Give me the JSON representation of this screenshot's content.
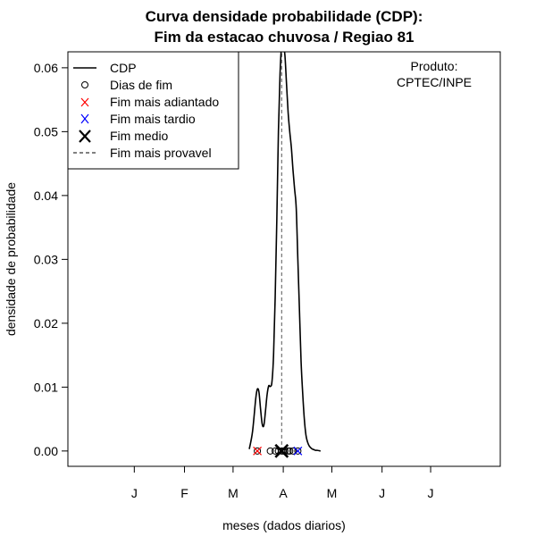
{
  "chart_data": {
    "type": "line",
    "title_line1": "Curva densidade probabilidade (CDP):",
    "title_line2": "Fim da estacao chuvosa / Regiao 81",
    "xlabel": "meses (dados diarios)",
    "ylabel": "densidade de probabilidade",
    "x_month_ticks": [
      {
        "label": "J",
        "day": 15
      },
      {
        "label": "F",
        "day": 46
      },
      {
        "label": "M",
        "day": 76
      },
      {
        "label": "A",
        "day": 107
      },
      {
        "label": "M",
        "day": 137
      },
      {
        "label": "J",
        "day": 168
      },
      {
        "label": "J",
        "day": 198
      }
    ],
    "xlim": [
      -26,
      241
    ],
    "ylim": [
      -0.0024,
      0.0625
    ],
    "y_ticks": [
      0.0,
      0.01,
      0.02,
      0.03,
      0.04,
      0.05,
      0.06
    ],
    "y_tick_labels": [
      "0.00",
      "0.01",
      "0.02",
      "0.03",
      "0.04",
      "0.05",
      "0.06"
    ],
    "density_curve": {
      "x": [
        86,
        88,
        90,
        91,
        92,
        93,
        94,
        95,
        96,
        97,
        98,
        99,
        100,
        101,
        102,
        103,
        104,
        105,
        106,
        107,
        108,
        109,
        110,
        111,
        112,
        113,
        114,
        115,
        116,
        117,
        118,
        119,
        120,
        121,
        122,
        123,
        124,
        125,
        126,
        127,
        128,
        130
      ],
      "y": [
        0.0003,
        0.003,
        0.0082,
        0.0097,
        0.0092,
        0.0065,
        0.0042,
        0.004,
        0.0062,
        0.0088,
        0.0102,
        0.0101,
        0.0108,
        0.015,
        0.024,
        0.036,
        0.05,
        0.059,
        0.0635,
        0.0635,
        0.062,
        0.0575,
        0.053,
        0.05,
        0.0475,
        0.044,
        0.041,
        0.038,
        0.03,
        0.022,
        0.014,
        0.009,
        0.005,
        0.0025,
        0.0014,
        0.0008,
        0.0005,
        0.0003,
        0.0002,
        0.0001,
        0.0001,
        0.0
      ]
    },
    "dias_de_fim": [
      91,
      99,
      102,
      104,
      106,
      107,
      108,
      110,
      111,
      113,
      116
    ],
    "fim_mais_adiantado": 91,
    "fim_mais_tardio": 116,
    "fim_medio": 106,
    "fim_mais_provavel": 106,
    "legend": {
      "position": "top-left",
      "entries": [
        {
          "label": "CDP",
          "symbol": "line"
        },
        {
          "label": "Dias de fim",
          "symbol": "circle"
        },
        {
          "label": "Fim mais adiantado",
          "symbol": "x-red"
        },
        {
          "label": "Fim mais tardio",
          "symbol": "x-blue"
        },
        {
          "label": "Fim medio",
          "symbol": "x-big"
        },
        {
          "label": "Fim mais provavel",
          "symbol": "dashed"
        }
      ]
    },
    "annotation": {
      "line1": "Produto:",
      "line2": "CPTEC/INPE",
      "position": "top-right"
    },
    "colors": {
      "curve": "#000000",
      "adiantado": "#ff0000",
      "tardio": "#0000ff",
      "provavel": "#555555"
    }
  }
}
